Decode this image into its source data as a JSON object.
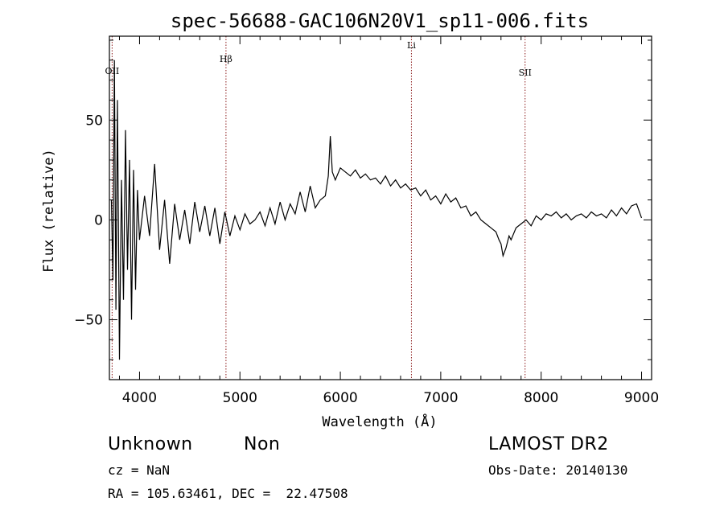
{
  "chart_data": {
    "type": "line",
    "title": "spec-56688-GAC106N20V1_sp11-006.fits",
    "xlabel": "Wavelength (Å)",
    "ylabel": "Flux (relative)",
    "xlim": [
      3700,
      9100
    ],
    "ylim": [
      -80,
      92
    ],
    "xticks": [
      4000,
      5000,
      6000,
      7000,
      8000,
      9000
    ],
    "xtick_labels": [
      "4000",
      "5000",
      "6000",
      "7000",
      "8000",
      "9000"
    ],
    "yticks": [
      -50,
      0,
      50
    ],
    "ytick_labels": [
      "−50",
      "0",
      "50"
    ],
    "grid": false,
    "line_color": "#000000",
    "marker_color": "#8b1a1a",
    "series": [
      {
        "x": [
          3720,
          3735,
          3750,
          3765,
          3780,
          3800,
          3820,
          3840,
          3860,
          3880,
          3900,
          3920,
          3940,
          3960,
          3980,
          4000,
          4050,
          4100,
          4150,
          4200,
          4250,
          4300,
          4350,
          4400,
          4450,
          4500,
          4550,
          4600,
          4650,
          4700,
          4750,
          4800,
          4850,
          4900,
          4950,
          5000,
          5050,
          5100,
          5150,
          5200,
          5250,
          5300,
          5350,
          5400,
          5450,
          5500,
          5550,
          5600,
          5650,
          5700,
          5750,
          5800,
          5850,
          5880,
          5900,
          5920,
          5950,
          6000,
          6050,
          6100,
          6150,
          6200,
          6250,
          6300,
          6350,
          6400,
          6450,
          6500,
          6550,
          6600,
          6650,
          6700,
          6750,
          6800,
          6850,
          6900,
          6950,
          7000,
          7050,
          7100,
          7150,
          7200,
          7250,
          7300,
          7350,
          7400,
          7450,
          7500,
          7550,
          7580,
          7600,
          7620,
          7650,
          7680,
          7700,
          7750,
          7800,
          7850,
          7900,
          7950,
          8000,
          8050,
          8100,
          8150,
          8200,
          8250,
          8300,
          8350,
          8400,
          8450,
          8500,
          8550,
          8600,
          8650,
          8700,
          8750,
          8800,
          8850,
          8900,
          8950,
          9000
        ],
        "y": [
          10,
          -30,
          80,
          -45,
          60,
          -70,
          20,
          -40,
          45,
          -25,
          30,
          -50,
          25,
          -35,
          15,
          -10,
          12,
          -8,
          28,
          -15,
          10,
          -22,
          8,
          -10,
          5,
          -12,
          9,
          -6,
          7,
          -8,
          6,
          -12,
          4,
          -8,
          2,
          -5,
          3,
          -2,
          0,
          4,
          -3,
          6,
          -2,
          9,
          0,
          8,
          3,
          14,
          4,
          17,
          6,
          10,
          12,
          22,
          42,
          24,
          20,
          26,
          24,
          22,
          25,
          21,
          23,
          20,
          21,
          18,
          22,
          17,
          20,
          16,
          18,
          15,
          16,
          12,
          15,
          10,
          12,
          8,
          13,
          9,
          11,
          6,
          7,
          2,
          4,
          0,
          -2,
          -4,
          -6,
          -10,
          -12,
          -18,
          -14,
          -8,
          -10,
          -4,
          -2,
          0,
          -3,
          2,
          0,
          3,
          2,
          4,
          1,
          3,
          0,
          2,
          3,
          1,
          4,
          2,
          3,
          1,
          5,
          2,
          6,
          3,
          7,
          8,
          1
        ]
      }
    ],
    "line_markers": [
      {
        "label": "OII",
        "x": 3727
      },
      {
        "label": "Hβ",
        "x": 4861
      },
      {
        "label": "Li",
        "x": 6708
      },
      {
        "label": "SII",
        "x": 7840
      }
    ]
  },
  "info": {
    "class": "Unknown",
    "subclass": "Non",
    "survey": "LAMOST DR2",
    "cz": "cz = NaN",
    "obs_date": "Obs-Date: 20140130",
    "coords": "RA = 105.63461, DEC =  22.47508"
  }
}
